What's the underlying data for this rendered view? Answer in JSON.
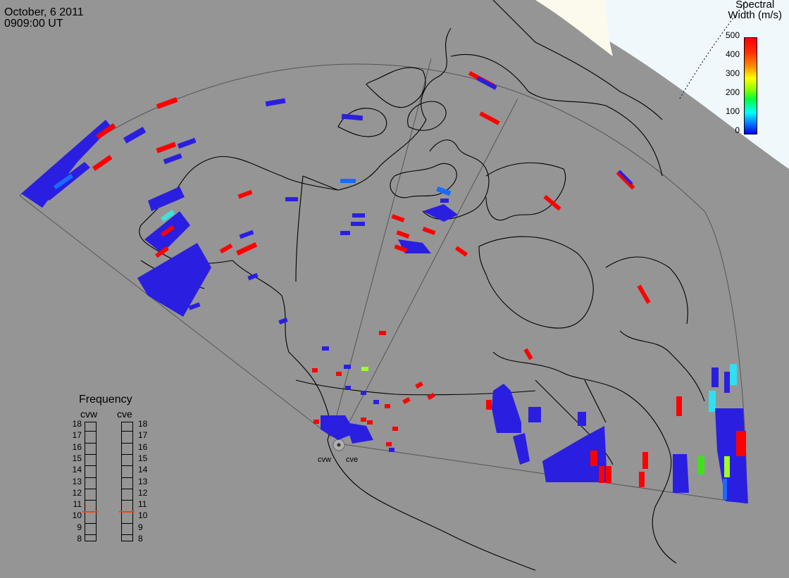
{
  "header": {
    "date": "October, 6 2011",
    "time": "0909:00 UT"
  },
  "colorbar": {
    "title_line1": "Spectral",
    "title_line2": "Width (m/s)",
    "ticks": [
      "500",
      "400",
      "300",
      "200",
      "100",
      "0"
    ],
    "colors": {
      "low": "#0000ff",
      "mid": "#00ff40",
      "high": "#ff0000"
    }
  },
  "frequency": {
    "title": "Frequency",
    "radars": [
      {
        "name": "cvw",
        "value_mhz": 10.5
      },
      {
        "name": "cve",
        "value_mhz": 10.5
      }
    ],
    "scale_left": [
      "18",
      "17",
      "16",
      "15",
      "14",
      "13",
      "12",
      "11",
      "10",
      "9",
      "8"
    ],
    "scale_right": [
      "18",
      "17",
      "16",
      "15",
      "14",
      "13",
      "12",
      "11",
      "10",
      "9",
      "8"
    ],
    "marker_color": "#ff4000"
  },
  "sites": {
    "west": "cvw",
    "east": "cve"
  },
  "map": {
    "background": "#959595",
    "daylight_color": "#f0f8ff",
    "coast_color": "#000000"
  }
}
